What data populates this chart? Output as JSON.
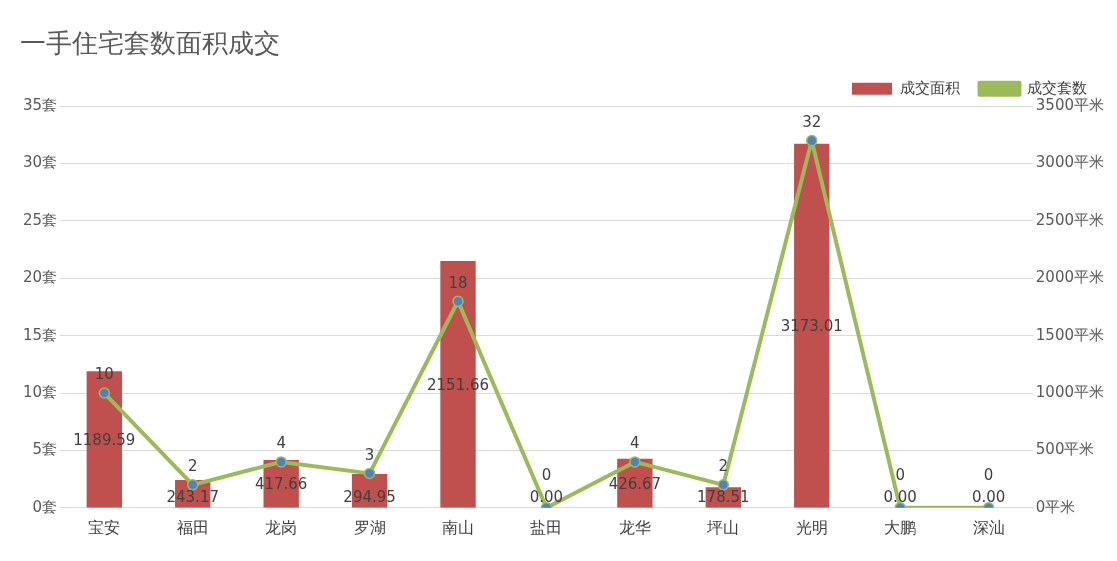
{
  "chart_data": {
    "type": "bar",
    "title": "一手住宅套数面积成交",
    "categories": [
      "宝安",
      "福田",
      "龙岗",
      "罗湖",
      "南山",
      "盐田",
      "龙华",
      "坪山",
      "光明",
      "大鹏",
      "深汕"
    ],
    "series": [
      {
        "name": "成交面积",
        "type": "bar",
        "axis": "y2",
        "color": "#c0504d",
        "values": [
          1189.59,
          243.17,
          417.66,
          294.95,
          2151.66,
          0,
          426.67,
          178.51,
          3173.01,
          0,
          0
        ],
        "value_labels": [
          "1189.59",
          "243.17",
          "417.66",
          "294.95",
          "2151.66",
          "0.00",
          "426.67",
          "178.51",
          "3173.01",
          "0.00",
          "0.00"
        ]
      },
      {
        "name": "成交套数",
        "type": "line",
        "color": "#9bbb59",
        "values": [
          10,
          2,
          4,
          3,
          18,
          0,
          4,
          2,
          32,
          0,
          0
        ],
        "value_labels": [
          "10",
          "2",
          "4",
          "3",
          "18",
          "0",
          "4",
          "2",
          "32",
          "0",
          "0"
        ]
      }
    ],
    "ylim": [
      0,
      35
    ],
    "yticks": [
      {
        "value": 0,
        "label": "0套"
      },
      {
        "value": 5,
        "label": "5套"
      },
      {
        "value": 10,
        "label": "10套"
      },
      {
        "value": 15,
        "label": "15套"
      },
      {
        "value": 20,
        "label": "20套"
      },
      {
        "value": 25,
        "label": "25套"
      },
      {
        "value": 30,
        "label": "30套"
      },
      {
        "value": 35,
        "label": "35套"
      }
    ],
    "y2lim": [
      0,
      3500
    ],
    "y2ticks": [
      {
        "value": 0,
        "label": "0平米"
      },
      {
        "value": 500,
        "label": "500平米"
      },
      {
        "value": 1000,
        "label": "1000平米"
      },
      {
        "value": 1500,
        "label": "1500平米"
      },
      {
        "value": 2000,
        "label": "2000平米"
      },
      {
        "value": 2500,
        "label": "2500平米"
      },
      {
        "value": 3000,
        "label": "3000平米"
      },
      {
        "value": 3500,
        "label": "3500平米"
      }
    ],
    "grid": "y",
    "legend": "top right",
    "marker": "circle",
    "line_style": "solid"
  }
}
